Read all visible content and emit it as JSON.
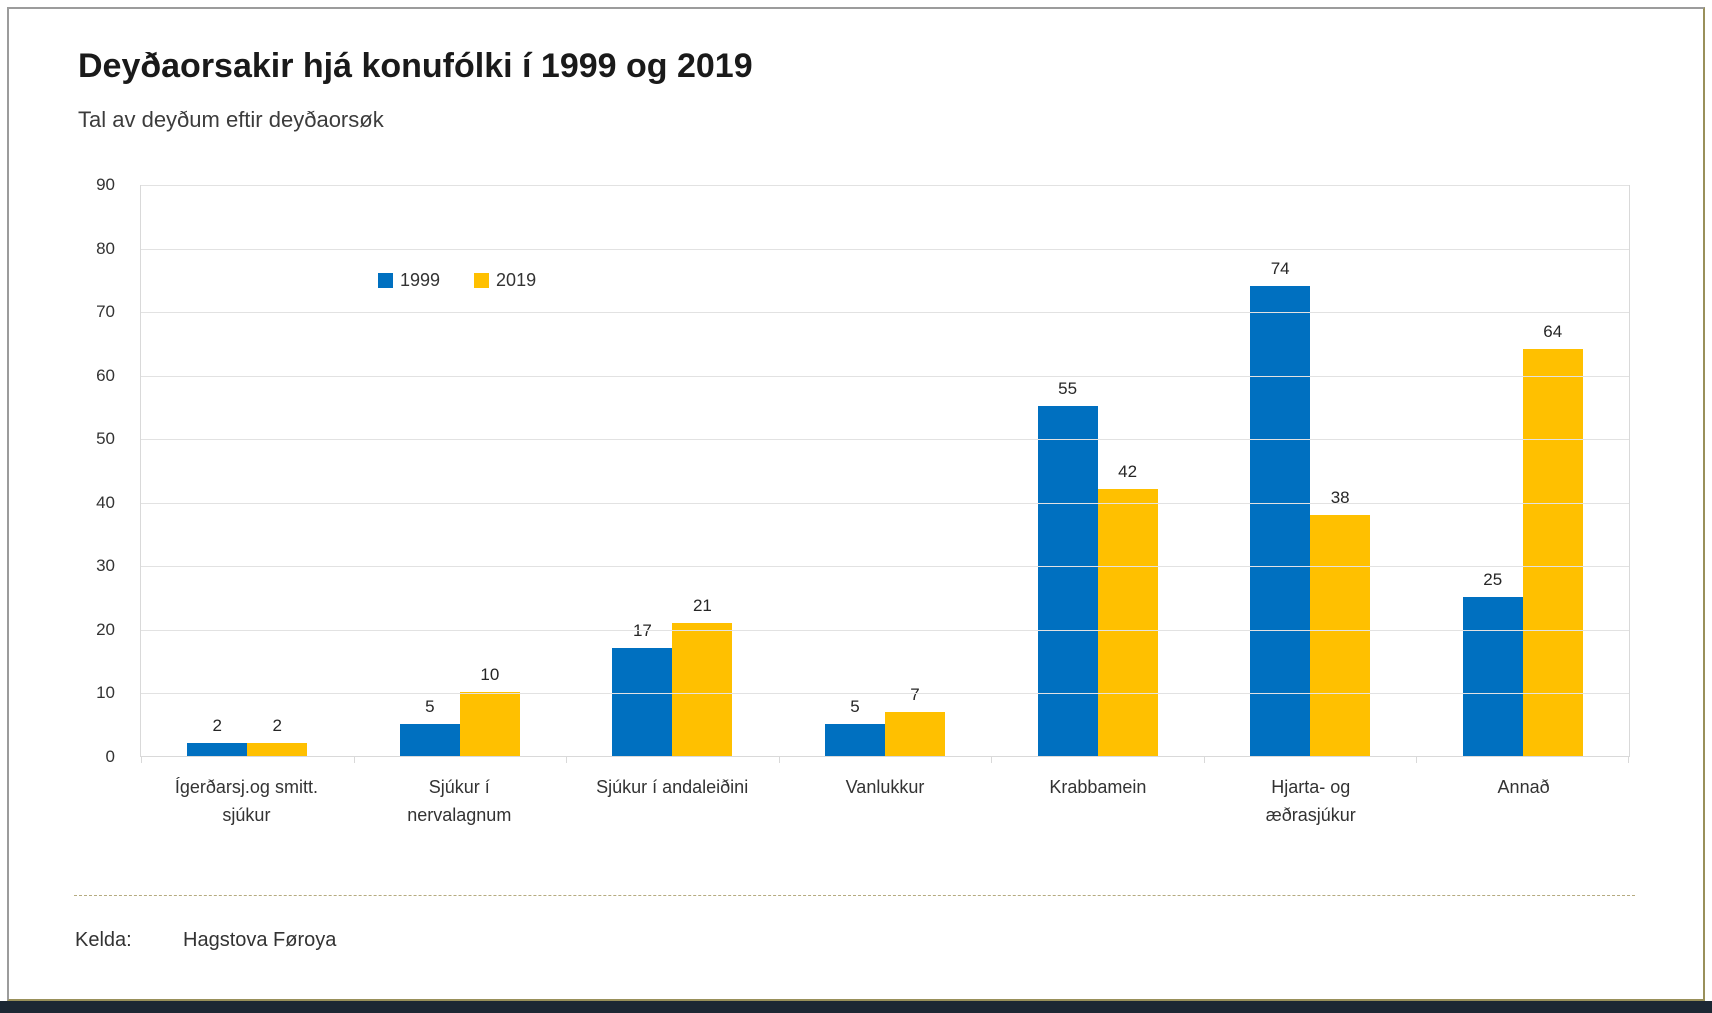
{
  "page": {
    "title": "Deyðaorsakir hjá konufólki í 1999 og 2019",
    "subtitle": "Tal av deyðum eftir deyðaorsøk",
    "source_label": "Kelda:",
    "source_value": "Hagstova Føroya"
  },
  "colors": {
    "series_1999": "#0070C0",
    "series_2019": "#FFC000",
    "gridline": "#e2e2e2",
    "axis_line": "#d9d9d9",
    "text": "#333333",
    "frame_border_top_left": "#9c9c9c",
    "frame_border_bottom_right": "#99905a",
    "divider_dashed": "#b5ab80",
    "bottom_strip": "#1c2733"
  },
  "chart_data": {
    "type": "bar",
    "title": "Deyðaorsakir hjá konufólki í 1999 og 2019",
    "subtitle": "Tal av deyðum eftir deyðaorsøk",
    "categories": [
      "Ígerðarsj.og smitt. sjúkur",
      "Sjúkur í nervalagnum",
      "Sjúkur í andaleiðini",
      "Vanlukkur",
      "Krabbamein",
      "Hjarta- og æðrasjúkur",
      "Annað"
    ],
    "category_lines": [
      [
        "Ígerðarsj.og smitt.",
        "sjúkur"
      ],
      [
        "Sjúkur í",
        "nervalagnum"
      ],
      [
        "Sjúkur í andaleiðini"
      ],
      [
        "Vanlukkur"
      ],
      [
        "Krabbamein"
      ],
      [
        "Hjarta- og",
        "æðrasjúkur"
      ],
      [
        "Annað"
      ]
    ],
    "series": [
      {
        "name": "1999",
        "color": "#0070C0",
        "values": [
          2,
          5,
          17,
          5,
          55,
          74,
          25
        ]
      },
      {
        "name": "2019",
        "color": "#FFC000",
        "values": [
          2,
          10,
          21,
          7,
          42,
          38,
          64
        ]
      }
    ],
    "ylim": [
      0,
      90
    ],
    "ytick_step": 10,
    "grid": true,
    "data_labels": true,
    "legend_position": "inside-top-left",
    "source": "Hagstova Føroya"
  }
}
